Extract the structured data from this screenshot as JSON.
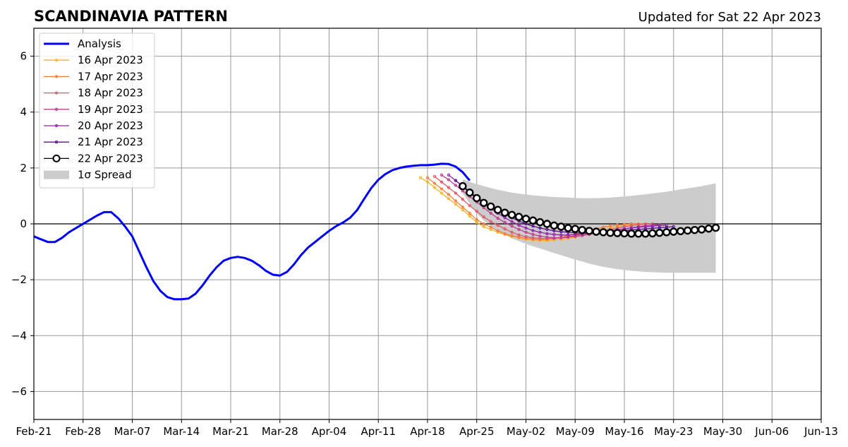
{
  "chart_data": {
    "type": "line",
    "title": "SCANDINAVIA PATTERN",
    "subtitle": "Updated for Sat 22 Apr 2023",
    "xlabel": "",
    "ylabel": "",
    "xlim": [
      "2023-02-21",
      "2023-06-13"
    ],
    "ylim": [
      -7,
      7
    ],
    "x_ticks": [
      "Feb-21",
      "Feb-28",
      "Mar-07",
      "Mar-14",
      "Mar-21",
      "Mar-28",
      "Apr-04",
      "Apr-11",
      "Apr-18",
      "Apr-25",
      "May-02",
      "May-09",
      "May-16",
      "May-23",
      "May-30",
      "Jun-06",
      "Jun-13"
    ],
    "y_ticks": [
      -6,
      -4,
      -2,
      0,
      2,
      4,
      6
    ],
    "grid": true,
    "legend_position": "top-left",
    "analysis": {
      "name": "Analysis",
      "color": "#0000ff",
      "start": "2023-02-21",
      "values": [
        -0.45,
        -0.55,
        -0.65,
        -0.65,
        -0.5,
        -0.3,
        -0.15,
        0.0,
        0.15,
        0.3,
        0.42,
        0.42,
        0.2,
        -0.1,
        -0.45,
        -1.0,
        -1.55,
        -2.05,
        -2.4,
        -2.62,
        -2.7,
        -2.7,
        -2.67,
        -2.5,
        -2.2,
        -1.85,
        -1.55,
        -1.32,
        -1.22,
        -1.18,
        -1.22,
        -1.32,
        -1.48,
        -1.68,
        -1.82,
        -1.85,
        -1.72,
        -1.45,
        -1.12,
        -0.85,
        -0.65,
        -0.45,
        -0.25,
        -0.08,
        0.05,
        0.22,
        0.5,
        0.9,
        1.28,
        1.58,
        1.78,
        1.92,
        2.0,
        2.05,
        2.08,
        2.1,
        2.1,
        2.12,
        2.15,
        2.14,
        2.05,
        1.85,
        1.55
      ]
    },
    "forecasts": [
      {
        "name": "16 Apr 2023",
        "color": "#f5b52e",
        "start": "2023-04-17",
        "values": [
          1.65,
          1.5,
          1.3,
          1.1,
          0.9,
          0.7,
          0.5,
          0.28,
          0.05,
          -0.1,
          -0.2,
          -0.3,
          -0.38,
          -0.45,
          -0.5,
          -0.55,
          -0.58,
          -0.6,
          -0.6,
          -0.58,
          -0.55,
          -0.52,
          -0.48,
          -0.42,
          -0.35,
          -0.28,
          -0.2,
          -0.15,
          -0.1,
          -0.05,
          -0.02,
          0.0,
          0.0
        ]
      },
      {
        "name": "17 Apr 2023",
        "color": "#f27f3f",
        "start": "2023-04-18",
        "values": [
          1.65,
          1.45,
          1.25,
          1.05,
          0.82,
          0.6,
          0.38,
          0.15,
          0.0,
          -0.12,
          -0.25,
          -0.35,
          -0.42,
          -0.48,
          -0.52,
          -0.55,
          -0.56,
          -0.55,
          -0.52,
          -0.48,
          -0.42,
          -0.36,
          -0.3,
          -0.24,
          -0.18,
          -0.12,
          -0.08,
          -0.04,
          -0.02,
          0.0,
          0.0,
          0.0
        ]
      },
      {
        "name": "18 Apr 2023",
        "color": "#e0576a",
        "start": "2023-04-19",
        "values": [
          1.7,
          1.5,
          1.3,
          1.1,
          0.88,
          0.65,
          0.45,
          0.25,
          0.08,
          -0.05,
          -0.18,
          -0.3,
          -0.4,
          -0.46,
          -0.5,
          -0.52,
          -0.53,
          -0.52,
          -0.5,
          -0.46,
          -0.42,
          -0.38,
          -0.34,
          -0.3,
          -0.25,
          -0.2,
          -0.15,
          -0.1,
          -0.06,
          -0.03,
          -0.01,
          0.0
        ]
      },
      {
        "name": "19 Apr 2023",
        "color": "#c03c8f",
        "start": "2023-04-20",
        "values": [
          1.75,
          1.58,
          1.38,
          1.18,
          0.98,
          0.78,
          0.58,
          0.38,
          0.2,
          0.05,
          -0.08,
          -0.2,
          -0.3,
          -0.38,
          -0.44,
          -0.48,
          -0.5,
          -0.5,
          -0.48,
          -0.45,
          -0.42,
          -0.38,
          -0.34,
          -0.3,
          -0.26,
          -0.22,
          -0.18,
          -0.14,
          -0.1,
          -0.07,
          -0.05,
          -0.03
        ]
      },
      {
        "name": "20 Apr 2023",
        "color": "#9523a8",
        "start": "2023-04-21",
        "values": [
          1.75,
          1.55,
          1.35,
          1.15,
          0.95,
          0.75,
          0.55,
          0.38,
          0.22,
          0.08,
          -0.05,
          -0.15,
          -0.24,
          -0.3,
          -0.35,
          -0.38,
          -0.4,
          -0.4,
          -0.38,
          -0.36,
          -0.33,
          -0.3,
          -0.27,
          -0.24,
          -0.21,
          -0.18,
          -0.15,
          -0.12,
          -0.1,
          -0.08,
          -0.06,
          -0.05
        ]
      },
      {
        "name": "21 Apr 2023",
        "color": "#58108f",
        "start": "2023-04-22",
        "values": [
          1.55,
          1.35,
          1.15,
          0.95,
          0.78,
          0.62,
          0.48,
          0.35,
          0.22,
          0.1,
          0.0,
          -0.08,
          -0.15,
          -0.2,
          -0.25,
          -0.28,
          -0.3,
          -0.32,
          -0.33,
          -0.33,
          -0.32,
          -0.3,
          -0.28,
          -0.26,
          -0.24,
          -0.22,
          -0.2,
          -0.18,
          -0.16,
          -0.14,
          -0.12,
          -0.1
        ]
      },
      {
        "name": "22 Apr 2023",
        "color": "#000000",
        "start": "2023-04-23",
        "values": [
          1.35,
          1.12,
          0.92,
          0.75,
          0.62,
          0.5,
          0.4,
          0.32,
          0.25,
          0.18,
          0.12,
          0.06,
          0.0,
          -0.06,
          -0.1,
          -0.15,
          -0.18,
          -0.22,
          -0.25,
          -0.28,
          -0.3,
          -0.32,
          -0.33,
          -0.34,
          -0.35,
          -0.35,
          -0.35,
          -0.34,
          -0.32,
          -0.3,
          -0.28,
          -0.26,
          -0.24,
          -0.22,
          -0.2,
          -0.17,
          -0.14
        ]
      }
    ],
    "spread": {
      "name": "1σ Spread",
      "color": "#cccccc",
      "start": "2023-04-23",
      "upper": [
        1.6,
        1.5,
        1.42,
        1.35,
        1.28,
        1.22,
        1.17,
        1.12,
        1.08,
        1.05,
        1.02,
        1.0,
        0.98,
        0.96,
        0.95,
        0.94,
        0.93,
        0.92,
        0.92,
        0.92,
        0.93,
        0.94,
        0.96,
        0.98,
        1.0,
        1.03,
        1.06,
        1.09,
        1.12,
        1.15,
        1.19,
        1.23,
        1.27,
        1.31,
        1.35,
        1.4,
        1.45
      ],
      "lower": [
        1.1,
        0.72,
        0.38,
        0.12,
        -0.08,
        -0.25,
        -0.4,
        -0.52,
        -0.62,
        -0.72,
        -0.8,
        -0.88,
        -0.96,
        -1.04,
        -1.12,
        -1.2,
        -1.28,
        -1.35,
        -1.42,
        -1.48,
        -1.54,
        -1.58,
        -1.62,
        -1.65,
        -1.68,
        -1.7,
        -1.72,
        -1.73,
        -1.74,
        -1.75,
        -1.75,
        -1.75,
        -1.75,
        -1.75,
        -1.75,
        -1.75,
        -1.75
      ]
    }
  }
}
